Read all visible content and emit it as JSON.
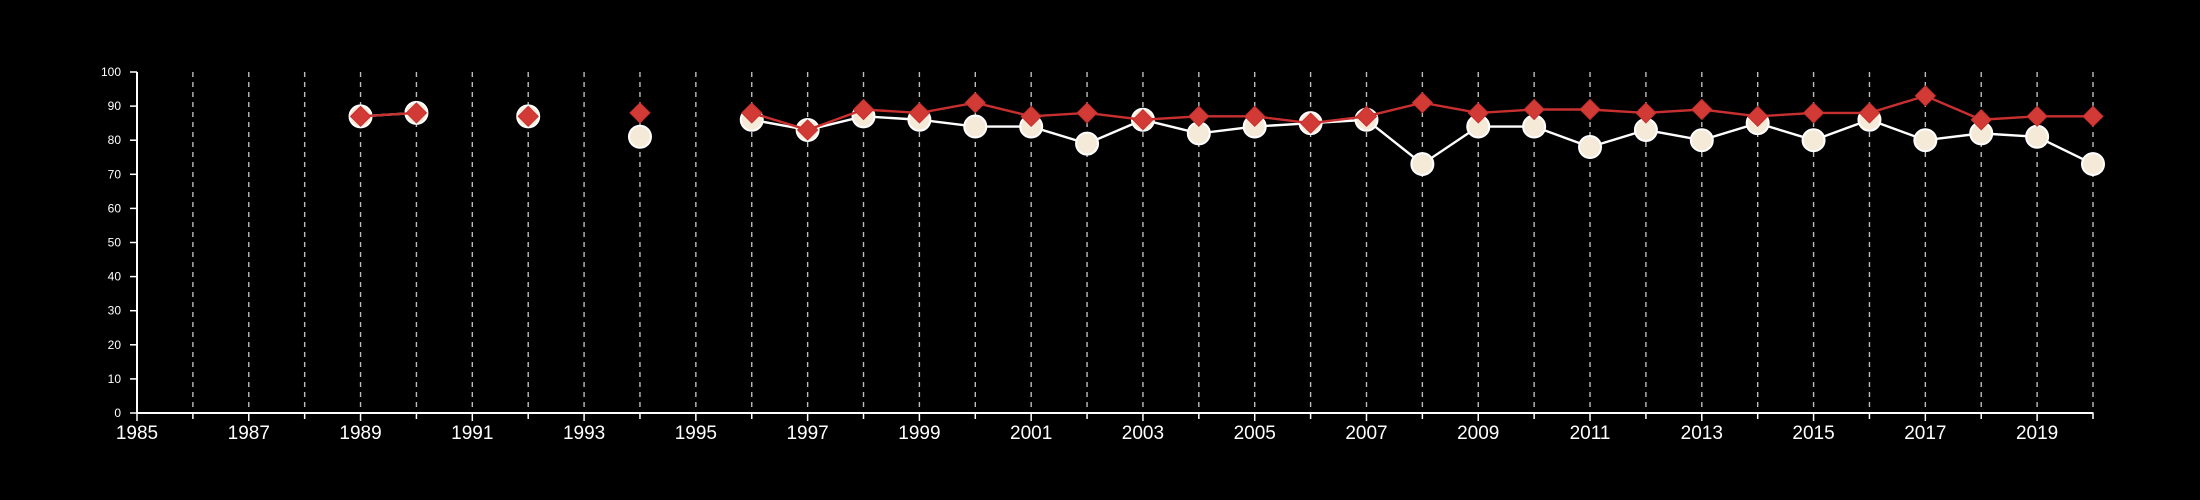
{
  "chart_data": {
    "type": "line",
    "title": "",
    "xlabel": "",
    "ylabel": "",
    "xlim": [
      1985,
      2020
    ],
    "ylim": [
      0,
      100
    ],
    "x_ticks": [
      1985,
      1987,
      1989,
      1991,
      1993,
      1995,
      1997,
      1999,
      2001,
      2003,
      2005,
      2007,
      2009,
      2011,
      2013,
      2015,
      2017,
      2019
    ],
    "y_ticks": [
      0,
      10,
      20,
      30,
      40,
      50,
      60,
      70,
      80,
      90,
      100
    ],
    "vertical_gridlines_years": [
      1986,
      1987,
      1988,
      1989,
      1990,
      1991,
      1992,
      1993,
      1994,
      1995,
      1996,
      1997,
      1998,
      1999,
      2000,
      2001,
      2002,
      2003,
      2004,
      2005,
      2006,
      2007,
      2008,
      2009,
      2010,
      2011,
      2012,
      2013,
      2014,
      2015,
      2016,
      2017,
      2018,
      2019,
      2020
    ],
    "grid": "vertical dashed",
    "legend": "none",
    "series": [
      {
        "marker": "circle",
        "color": "#ffffff",
        "marker_fill": "#f5ead8",
        "points": [
          [
            1989,
            87
          ],
          [
            1990,
            88
          ],
          [
            1992,
            87
          ],
          [
            1994,
            81
          ],
          [
            1996,
            86
          ],
          [
            1997,
            83
          ],
          [
            1998,
            87
          ],
          [
            1999,
            86
          ],
          [
            2000,
            84
          ],
          [
            2001,
            84
          ],
          [
            2002,
            79
          ],
          [
            2003,
            86
          ],
          [
            2004,
            82
          ],
          [
            2005,
            84
          ],
          [
            2006,
            85
          ],
          [
            2007,
            86
          ],
          [
            2008,
            73
          ],
          [
            2009,
            84
          ],
          [
            2010,
            84
          ],
          [
            2011,
            78
          ],
          [
            2012,
            83
          ],
          [
            2013,
            80
          ],
          [
            2014,
            85
          ],
          [
            2015,
            80
          ],
          [
            2016,
            86
          ],
          [
            2017,
            80
          ],
          [
            2018,
            82
          ],
          [
            2019,
            81
          ],
          [
            2020,
            73
          ]
        ]
      },
      {
        "marker": "diamond",
        "color": "#c8302f",
        "marker_fill": "#d13a35",
        "points": [
          [
            1989,
            87
          ],
          [
            1990,
            88
          ],
          [
            1992,
            87
          ],
          [
            1994,
            88
          ],
          [
            1996,
            88
          ],
          [
            1997,
            83
          ],
          [
            1998,
            89
          ],
          [
            1999,
            88
          ],
          [
            2000,
            91
          ],
          [
            2001,
            87
          ],
          [
            2002,
            88
          ],
          [
            2003,
            86
          ],
          [
            2004,
            87
          ],
          [
            2005,
            87
          ],
          [
            2006,
            85
          ],
          [
            2007,
            87
          ],
          [
            2008,
            91
          ],
          [
            2009,
            88
          ],
          [
            2010,
            89
          ],
          [
            2011,
            89
          ],
          [
            2012,
            88
          ],
          [
            2013,
            89
          ],
          [
            2014,
            87
          ],
          [
            2015,
            88
          ],
          [
            2016,
            88
          ],
          [
            2017,
            93
          ],
          [
            2018,
            86
          ],
          [
            2019,
            87
          ],
          [
            2020,
            87
          ]
        ]
      }
    ]
  }
}
